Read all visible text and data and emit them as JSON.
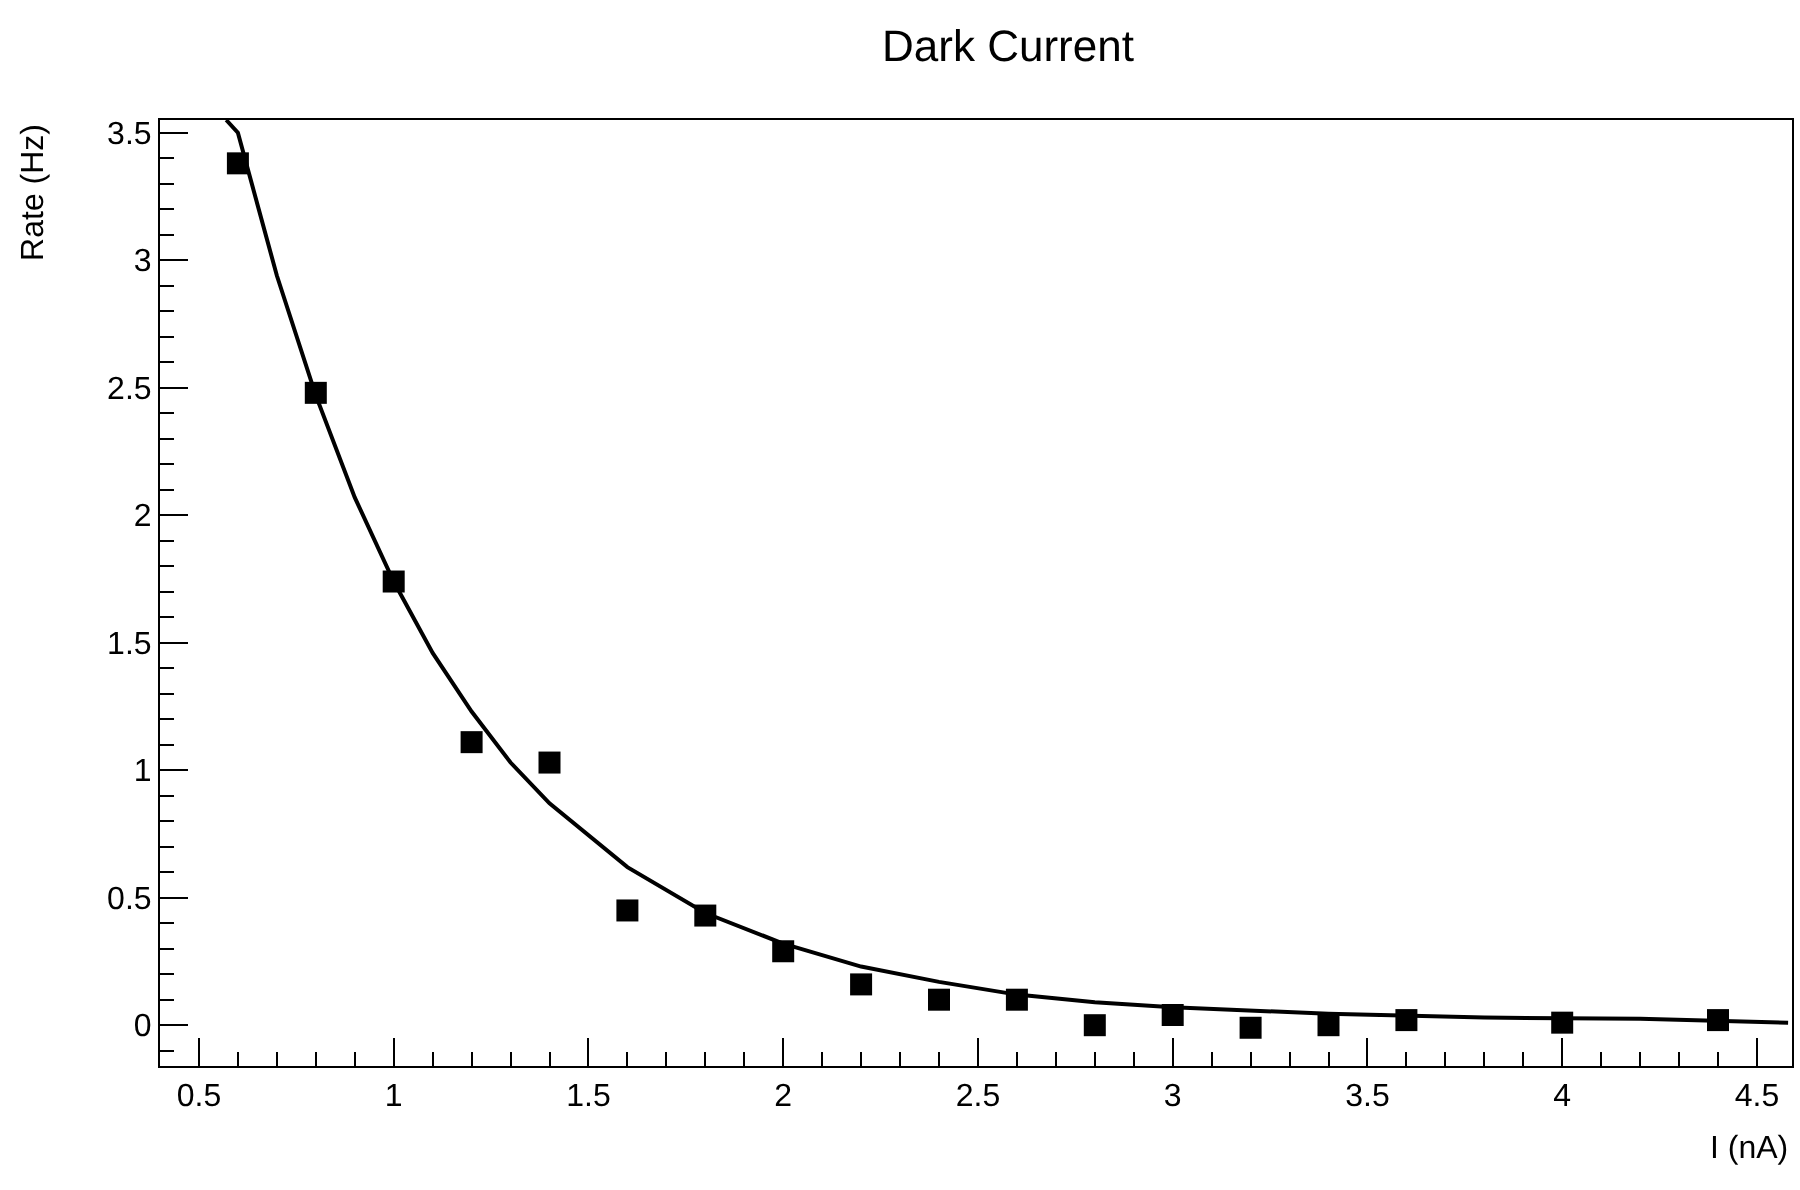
{
  "chart_data": {
    "type": "scatter",
    "title": "Dark Current",
    "xlabel": "I (nA)",
    "ylabel": "Rate (Hz)",
    "xlim": [
      0.4,
      4.59
    ],
    "xticks": [
      0.5,
      1,
      1.5,
      2,
      2.5,
      3,
      3.5,
      4,
      4.5
    ],
    "ylim": [
      -0.16,
      3.55
    ],
    "yticks": [
      0,
      0.5,
      1,
      1.5,
      2,
      2.5,
      3,
      3.5
    ],
    "grid": false,
    "marker": "square",
    "series": [
      {
        "color": "#000000",
        "x": [
          0.6,
          0.8,
          1.0,
          1.2,
          1.4,
          1.6,
          1.8,
          2.0,
          2.2,
          2.4,
          2.6,
          2.8,
          3.0,
          3.2,
          3.4,
          3.6,
          4.0,
          4.4
        ],
        "values": [
          3.38,
          2.48,
          1.74,
          1.11,
          1.03,
          0.45,
          0.43,
          0.29,
          0.16,
          0.1,
          0.1,
          0.0,
          0.04,
          -0.01,
          0.0,
          0.02,
          0.01,
          0.02
        ]
      },
      {
        "type": "line",
        "color": "#000000",
        "marker": "none",
        "line_style": "solid",
        "x": [
          0.57,
          0.6,
          0.7,
          0.8,
          0.9,
          1.0,
          1.1,
          1.2,
          1.3,
          1.4,
          1.6,
          1.8,
          2.0,
          2.2,
          2.4,
          2.6,
          2.8,
          3.0,
          3.4,
          3.8,
          4.2,
          4.58
        ],
        "values": [
          3.55,
          3.5,
          2.94,
          2.47,
          2.07,
          1.74,
          1.46,
          1.23,
          1.03,
          0.87,
          0.62,
          0.44,
          0.32,
          0.23,
          0.17,
          0.12,
          0.09,
          0.07,
          0.045,
          0.03,
          0.025,
          0.01
        ]
      }
    ]
  }
}
